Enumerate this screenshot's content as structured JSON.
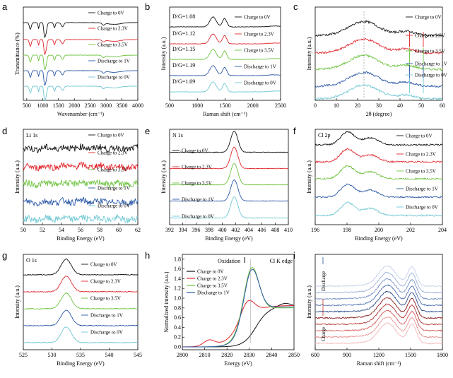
{
  "colors": {
    "black": "#111111",
    "red": "#e0272d",
    "green": "#6cc23d",
    "blue": "#2a57a6",
    "cyan": "#6fc7d4"
  },
  "common_legend": [
    "Charge to 0V",
    "Charge to 2.3V",
    "Charge to 3.5V",
    "Discharge to 1V",
    "Discharge to 0V"
  ],
  "chart_data": [
    {
      "panel": "a",
      "type": "line",
      "xlabel": "Wavenumber (cm⁻¹)",
      "ylabel": "Transmittance (%)",
      "xlim": [
        400,
        4000
      ],
      "xticks": [
        "500",
        "1000",
        "1500",
        "2000",
        "2500",
        "3000",
        "3500",
        "4000"
      ],
      "series": [
        {
          "name": "Charge to 0V"
        },
        {
          "name": "Charge to 2.3V"
        },
        {
          "name": "Charge to 3.5V"
        },
        {
          "name": "Discharge to 1V"
        },
        {
          "name": "Discharge to 0V"
        }
      ]
    },
    {
      "panel": "b",
      "type": "line",
      "xlabel": "Raman shift (cm⁻¹)",
      "ylabel": "Intensity (a.u.)",
      "xlim": [
        400,
        2800
      ],
      "xticks": [
        "500",
        "1000",
        "1500",
        "2000",
        "2500"
      ],
      "series": [
        {
          "name": "Charge to 0V",
          "annotation": "D/G=1.08"
        },
        {
          "name": "Charge to 2.3V",
          "annotation": "D/G=1.12"
        },
        {
          "name": "Charge to 3.5V",
          "annotation": "D/G=1.15"
        },
        {
          "name": "Discharge to 1V",
          "annotation": "D/G=1.19"
        },
        {
          "name": "Discharge to 0V",
          "annotation": "D/G=1.09"
        }
      ]
    },
    {
      "panel": "c",
      "type": "line",
      "xlabel": "2θ (degree)",
      "ylabel": "Intensity (a.u.)",
      "xlim": [
        0,
        60
      ],
      "xticks": [
        "0",
        "10",
        "20",
        "30",
        "40",
        "50",
        "60"
      ],
      "series": [
        {
          "name": "Charge to 0V"
        },
        {
          "name": "Charge to 2.3V"
        },
        {
          "name": "Charge to 3.5V"
        },
        {
          "name": "Discharge to 1V"
        },
        {
          "name": "Discharge to 0V"
        }
      ]
    },
    {
      "panel": "d",
      "type": "line",
      "title": "Li 1s",
      "xlabel": "Binding Energy (eV)",
      "ylabel": "Intensity (a.u.)",
      "xlim": [
        50,
        62
      ],
      "xticks": [
        "50",
        "52",
        "54",
        "56",
        "58",
        "60",
        "62"
      ],
      "series": [
        {
          "name": "Charge to 0V"
        },
        {
          "name": "Charge to 2.3V"
        },
        {
          "name": "Charge to 3.5V"
        },
        {
          "name": "Discharge to 1V"
        },
        {
          "name": "Discharge to 0V"
        }
      ]
    },
    {
      "panel": "e",
      "type": "line",
      "title": "N 1s",
      "xlabel": "Binding Energy (eV)",
      "ylabel": "Intensity (a.u.)",
      "xlim": [
        392,
        410
      ],
      "xticks": [
        "392",
        "394",
        "396",
        "398",
        "400",
        "402",
        "404",
        "406",
        "408",
        "410"
      ],
      "series": [
        {
          "name": "Charge to 0V"
        },
        {
          "name": "Charge to 2.3V"
        },
        {
          "name": "Charge to 3.5V"
        },
        {
          "name": "Discharge to 1V"
        },
        {
          "name": "Discharge to 0V"
        }
      ]
    },
    {
      "panel": "f",
      "type": "line",
      "title": "Cl 2p",
      "xlabel": "Binding Energy (eV)",
      "ylabel": "Intensity (a.u.)",
      "xlim": [
        196,
        205
      ],
      "xticks": [
        "196",
        "198",
        "200",
        "202",
        "204"
      ],
      "series": [
        {
          "name": "Charge to 0V"
        },
        {
          "name": "Charge to 2.3V"
        },
        {
          "name": "Charge to 3.5V"
        },
        {
          "name": "Discharge to 1V"
        },
        {
          "name": "Discharge to 0V"
        }
      ]
    },
    {
      "panel": "g",
      "type": "line",
      "title": "O 1s",
      "xlabel": "Binding Energy (eV)",
      "ylabel": "Intensity (a.u.)",
      "xlim": [
        525,
        545
      ],
      "xticks": [
        "525",
        "530",
        "535",
        "540",
        "545"
      ],
      "series": [
        {
          "name": "Charge to 0V"
        },
        {
          "name": "Charge to 2.3V"
        },
        {
          "name": "Charge to 3.5V"
        },
        {
          "name": "Discharge to 1V"
        },
        {
          "name": "Discharge to 0V"
        }
      ]
    },
    {
      "panel": "h",
      "type": "line",
      "title": "Cl K edge",
      "annotation": "Oxidation",
      "xlabel": "Energy (eV)",
      "ylabel": "Normalized intensity (a.u.)",
      "xlim": [
        2800,
        2850
      ],
      "ylim": [
        0.0,
        1.8
      ],
      "xticks": [
        "2800",
        "2810",
        "2820",
        "2830",
        "2840",
        "2850"
      ],
      "yticks": [
        "0.0",
        "0.2",
        "0.4",
        "0.6",
        "0.8",
        "1.0",
        "1.2",
        "1.4",
        "1.6",
        "1.8"
      ],
      "legend": [
        "Charge to 0V",
        "Charge to 2.3V",
        "Charge to 3.5V",
        "Discharge to 1V"
      ]
    },
    {
      "panel": "i",
      "type": "line",
      "xlabel": "Raman shift (cm⁻¹)",
      "ylabel": "Intensity (a.u.)",
      "xlim": [
        600,
        1900
      ],
      "xticks": [
        "600",
        "900",
        "1200",
        "1500",
        "1800"
      ],
      "side_labels": {
        "charge": "Charge",
        "discharge": "Discharge"
      }
    }
  ]
}
